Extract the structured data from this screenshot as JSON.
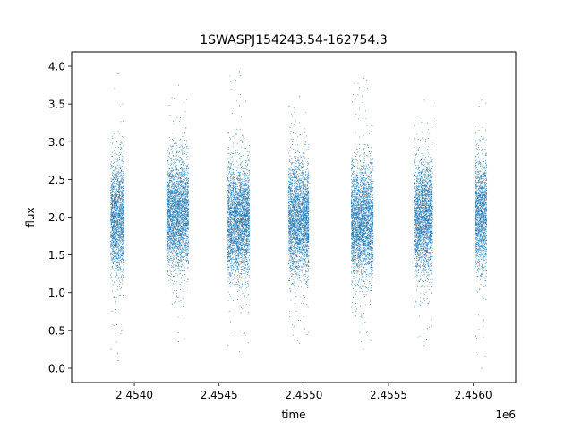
{
  "chart_data": {
    "type": "scatter",
    "title": "1SWASPJ154243.54-162754.3",
    "xlabel": "time",
    "ylabel": "flux",
    "x_offset_label": "1e6",
    "xlim": [
      2.45363,
      2.45625
    ],
    "ylim": [
      -0.19,
      4.19
    ],
    "x_ticks": [
      2.454,
      2.4545,
      2.455,
      2.4555,
      2.456
    ],
    "x_tick_labels": [
      "2.4540",
      "2.4545",
      "2.4550",
      "2.4555",
      "2.4560"
    ],
    "y_ticks": [
      0.0,
      0.5,
      1.0,
      1.5,
      2.0,
      2.5,
      3.0,
      3.5,
      4.0
    ],
    "y_tick_labels": [
      "0.0",
      "0.5",
      "1.0",
      "1.5",
      "2.0",
      "2.5",
      "3.0",
      "3.5",
      "4.0"
    ],
    "grid": false,
    "marker_color": "#1f77b4",
    "series": [
      {
        "observing_seasons": [
          {
            "x_start": 2.45386,
            "x_end": 2.45394,
            "flux_center": 2.0,
            "flux_min": 0.1,
            "flux_max": 3.9
          },
          {
            "x_start": 2.45419,
            "x_end": 2.45432,
            "flux_center": 2.05,
            "flux_min": 0.35,
            "flux_max": 3.75
          },
          {
            "x_start": 2.45455,
            "x_end": 2.45468,
            "flux_center": 1.95,
            "flux_min": 0.22,
            "flux_max": 3.93
          },
          {
            "x_start": 2.45491,
            "x_end": 2.45503,
            "flux_center": 1.98,
            "flux_min": 0.33,
            "flux_max": 3.6
          },
          {
            "x_start": 2.45528,
            "x_end": 2.45541,
            "flux_center": 1.95,
            "flux_min": 0.25,
            "flux_max": 3.87
          },
          {
            "x_start": 2.45565,
            "x_end": 2.45576,
            "flux_center": 1.98,
            "flux_min": 0.3,
            "flux_max": 3.55
          },
          {
            "x_start": 2.45601,
            "x_end": 2.45608,
            "flux_center": 2.05,
            "flux_min": 0.0,
            "flux_max": 3.55
          }
        ]
      }
    ]
  }
}
